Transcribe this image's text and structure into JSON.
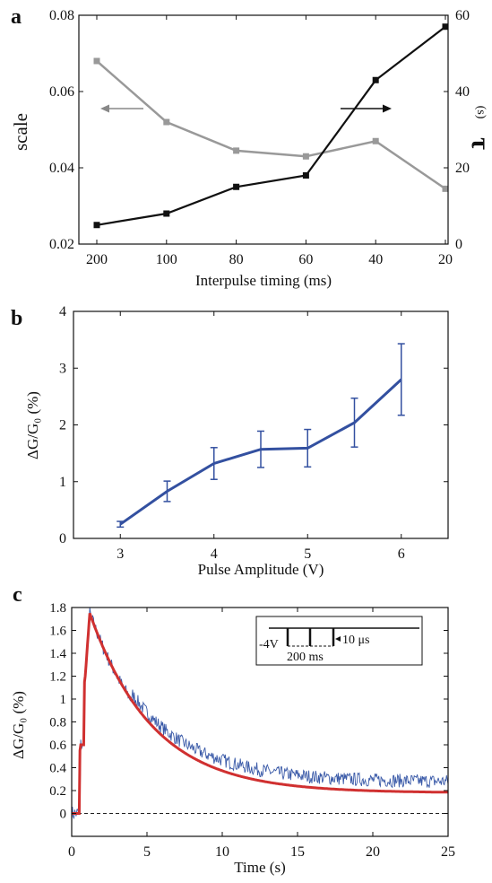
{
  "chart_data": [
    {
      "panel": "a",
      "type": "line",
      "xlabel": "Interpulse timing (ms)",
      "ylabel_left": "scale",
      "ylabel_right_symbol": "τ",
      "ylabel_right_unit": "(s)",
      "categories": [
        "200",
        "100",
        "80",
        "60",
        "40",
        "20"
      ],
      "ylim_left": [
        0.02,
        0.08
      ],
      "yticks_left": [
        "0.02",
        "0.04",
        "0.06",
        "0.08"
      ],
      "ylim_right": [
        0,
        60
      ],
      "yticks_right": [
        "0",
        "20",
        "40",
        "60"
      ],
      "series": [
        {
          "axis": "left",
          "color": "#999999",
          "values": [
            0.068,
            0.052,
            0.0445,
            0.043,
            0.047,
            0.0345
          ]
        },
        {
          "axis": "right",
          "color": "#111111",
          "values": [
            5,
            8,
            15,
            18,
            43,
            57
          ]
        }
      ],
      "annotations": [
        {
          "type": "arrow",
          "direction": "left",
          "target": "left-axis"
        },
        {
          "type": "arrow",
          "direction": "right",
          "target": "right-axis"
        }
      ]
    },
    {
      "panel": "b",
      "type": "line",
      "xlabel": "Pulse Amplitude (V)",
      "ylabel": "ΔG/G₀ (%)",
      "xlim": [
        2.5,
        6.5
      ],
      "xticks": [
        "3",
        "4",
        "5",
        "6"
      ],
      "ylim": [
        0,
        4
      ],
      "yticks": [
        "0",
        "1",
        "2",
        "3",
        "4"
      ],
      "color": "#3350a0",
      "x": [
        3,
        3.5,
        4,
        4.5,
        5,
        5.5,
        6
      ],
      "values": [
        0.25,
        0.83,
        1.32,
        1.57,
        1.59,
        2.04,
        2.8
      ],
      "errors": [
        0.05,
        0.18,
        0.28,
        0.32,
        0.33,
        0.43,
        0.63
      ]
    },
    {
      "panel": "c",
      "type": "line",
      "xlabel": "Time (s)",
      "ylabel": "ΔG/G₀ (%)",
      "xlim": [
        0,
        25
      ],
      "xticks": [
        "0",
        "5",
        "10",
        "15",
        "20",
        "25"
      ],
      "ylim": [
        -0.2,
        1.8
      ],
      "yticks": [
        "0",
        "0.2",
        "0.4",
        "0.6",
        "0.8",
        "1",
        "1.2",
        "1.4",
        "1.6",
        "1.8"
      ],
      "baseline": 0,
      "series": [
        {
          "kind": "measured",
          "color": "#3a5aa8"
        },
        {
          "kind": "fit",
          "color": "#d03030",
          "peak_time": 1.2,
          "peak_value": 1.75,
          "decay_tau": 4.2,
          "offset": 0.18
        }
      ],
      "inset": {
        "voltage_label": "-4V",
        "period_label": "200 ms",
        "width_label": "10 μs"
      }
    }
  ]
}
